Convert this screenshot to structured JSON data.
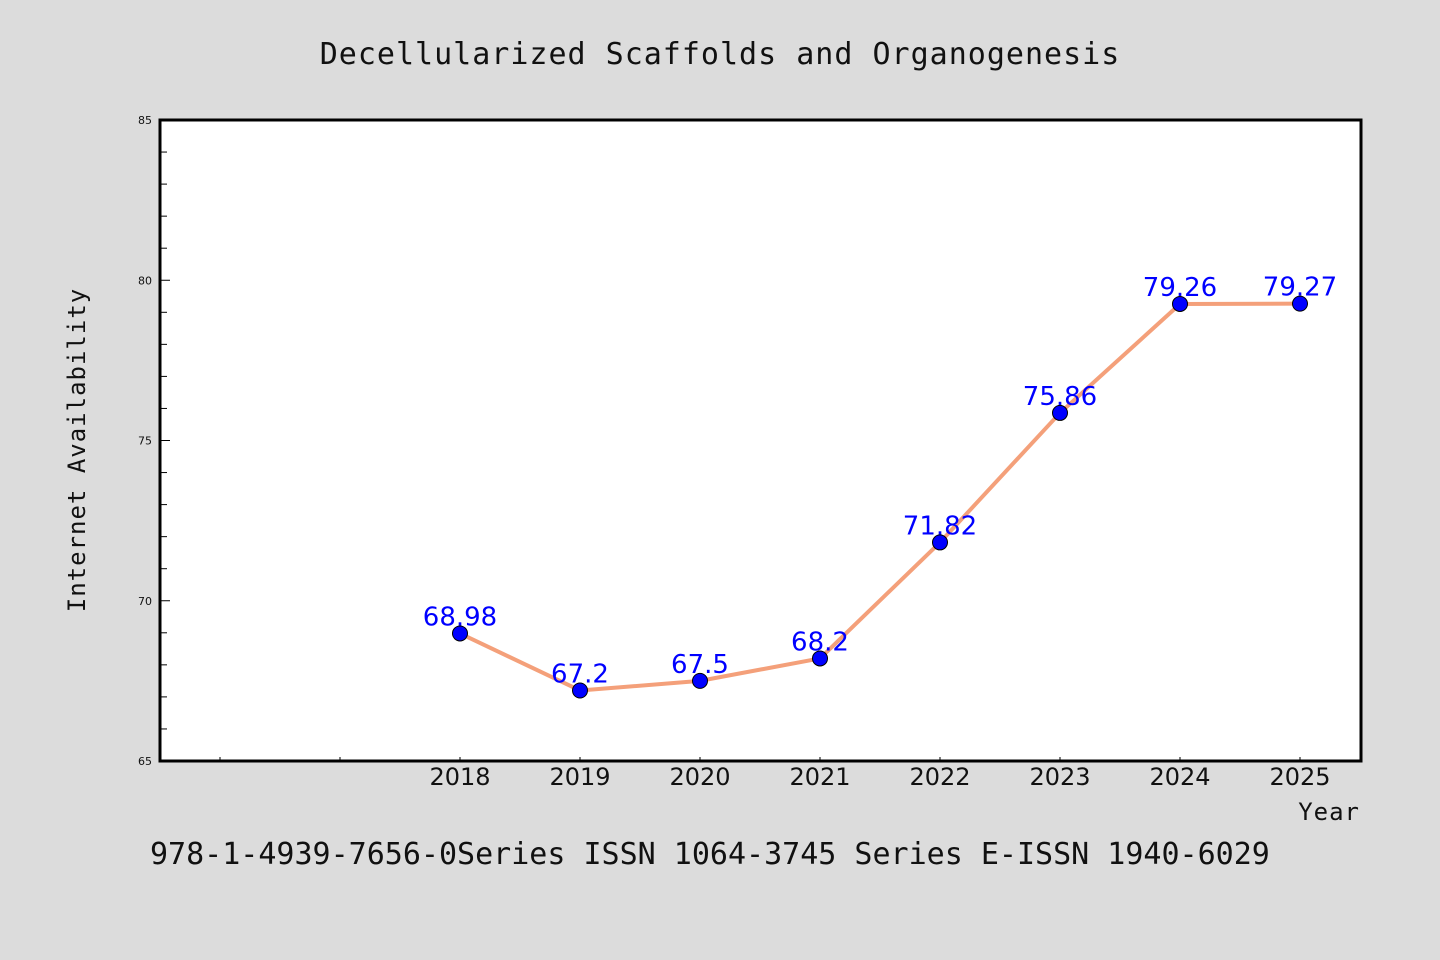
{
  "chart_data": {
    "type": "line",
    "title": "Decellularized Scaffolds and Organogenesis",
    "xlabel": "Year",
    "ylabel": "Internet Availability",
    "categories": [
      "2018",
      "2019",
      "2020",
      "2021",
      "2022",
      "2023",
      "2024",
      "2025"
    ],
    "series": [
      {
        "values": [
          68.98,
          67.2,
          67.5,
          68.2,
          71.82,
          75.86,
          79.26,
          79.27
        ],
        "labels": [
          "68.98",
          "67.2",
          "67.5",
          "68.2",
          "71.82",
          "75.86",
          "79.26",
          "79.27"
        ]
      }
    ],
    "ylim": [
      65,
      85
    ],
    "yticks": [
      "65",
      "70",
      "75",
      "80",
      "85"
    ],
    "grid": false,
    "line_color": "#f4a07a",
    "marker_color": "#0000ff",
    "label_color": "#0000ff"
  },
  "footer": "978-1-4939-7656-0Series ISSN 1064-3745 Series E-ISSN 1940-6029"
}
